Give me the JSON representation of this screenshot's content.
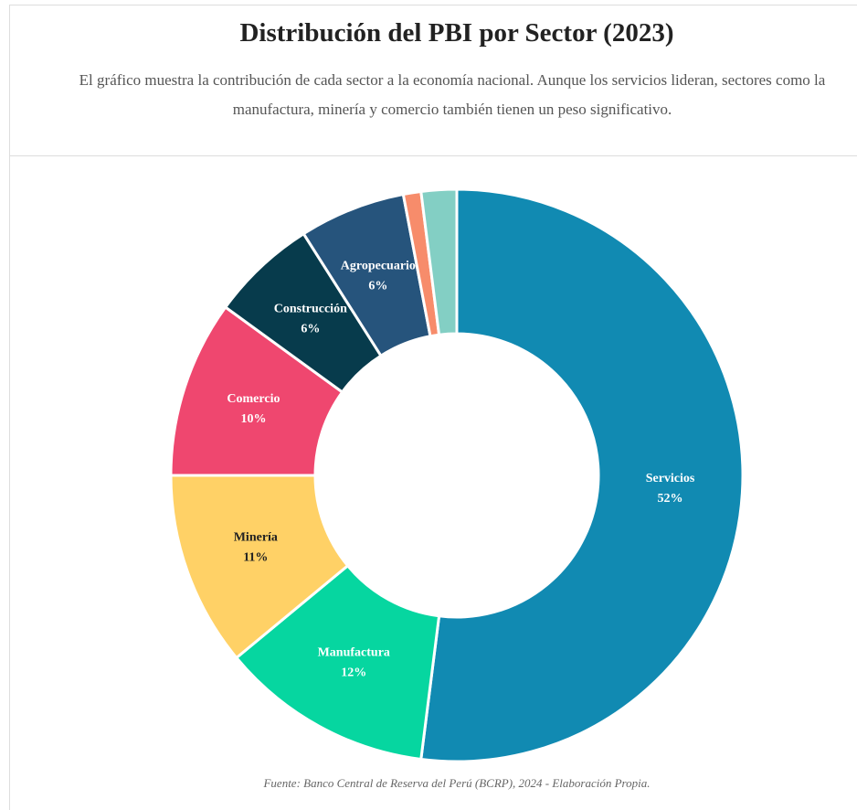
{
  "chart_data": {
    "type": "donut",
    "title": "Distribución del PBI por Sector (2023)",
    "subtitle": "El gráfico muestra la contribución de cada sector a la economía nacional. Aunque los servicios lideran, sectores como la manufactura, minería y comercio también tienen un peso significativo.",
    "source": "Fuente: Banco Central de Reserva del Perú (BCRP), 2024 - Elaboración Propia.",
    "categories": [
      "Servicios",
      "Manufactura",
      "Minería",
      "Comercio",
      "Construcción",
      "Agropecuario",
      null,
      null
    ],
    "values": [
      52,
      12,
      11,
      10,
      6,
      6,
      1,
      2
    ],
    "value_labels": [
      "52%",
      "12%",
      "11%",
      "10%",
      "6%",
      "6%",
      null,
      null
    ],
    "colors": [
      "#118ab2",
      "#06d6a0",
      "#ffd166",
      "#ef476f",
      "#073b4c",
      "#26547c",
      "#f78c6b",
      "#83cfc4"
    ]
  }
}
